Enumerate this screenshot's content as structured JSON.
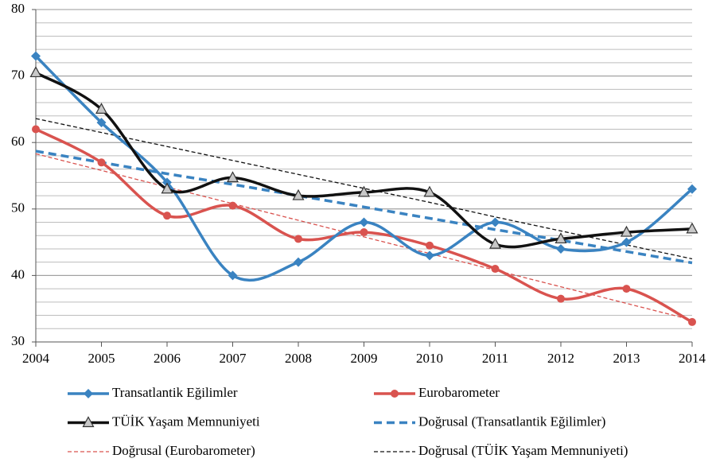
{
  "chart_data": {
    "type": "line",
    "x": [
      2004,
      2005,
      2006,
      2007,
      2008,
      2009,
      2010,
      2011,
      2012,
      2013,
      2014
    ],
    "xlim": [
      2004,
      2014
    ],
    "xticks": [
      2004,
      2005,
      2006,
      2007,
      2008,
      2009,
      2010,
      2011,
      2012,
      2013,
      2014
    ],
    "ylim": [
      30,
      80
    ],
    "yticks": [
      30,
      40,
      50,
      60,
      70,
      80
    ],
    "grid": true,
    "minor_grid_step": 2,
    "legend": "bottom",
    "series": [
      {
        "name": "Transatlantik Eğilimler",
        "color": "#3a83c1",
        "marker": "diamond",
        "smooth": true,
        "width": 3.5,
        "values": [
          73,
          63,
          54,
          40,
          42,
          48,
          43,
          48,
          44,
          45,
          53
        ]
      },
      {
        "name": "Eurobarometer",
        "color": "#d9534f",
        "marker": "circle",
        "smooth": true,
        "width": 3.5,
        "values": [
          62,
          57,
          49,
          50.5,
          45.5,
          46.5,
          44.5,
          41,
          36.5,
          38,
          33
        ]
      },
      {
        "name": "TÜİK Yaşam Memnuniyeti",
        "color": "#111111",
        "marker": "triangle",
        "smooth": true,
        "width": 3.5,
        "values": [
          70.5,
          65,
          53,
          54.7,
          52,
          52.5,
          52.5,
          44.7,
          45.5,
          46.5,
          47
        ]
      },
      {
        "name": "Doğrusal (Transatlantik Eğilimler)",
        "color": "#3a83c1",
        "dashed": true,
        "width": 3.5,
        "values": [
          58.7,
          57.0,
          55.3,
          53.7,
          52.0,
          50.3,
          48.6,
          46.9,
          45.3,
          43.6,
          41.9
        ]
      },
      {
        "name": "Doğrusal (Eurobarometer)",
        "color": "#d9534f",
        "dashed": true,
        "width": 1.3,
        "values": [
          58.3,
          55.8,
          53.3,
          50.8,
          48.3,
          45.8,
          43.3,
          40.8,
          38.3,
          35.8,
          33.3
        ]
      },
      {
        "name": "Doğrusal (TÜİK Yaşam Memnuniyeti)",
        "color": "#111111",
        "dashed": true,
        "width": 1.3,
        "values": [
          63.6,
          61.5,
          59.4,
          57.3,
          55.2,
          53.1,
          51.0,
          48.8,
          46.7,
          44.6,
          42.5
        ]
      }
    ]
  }
}
